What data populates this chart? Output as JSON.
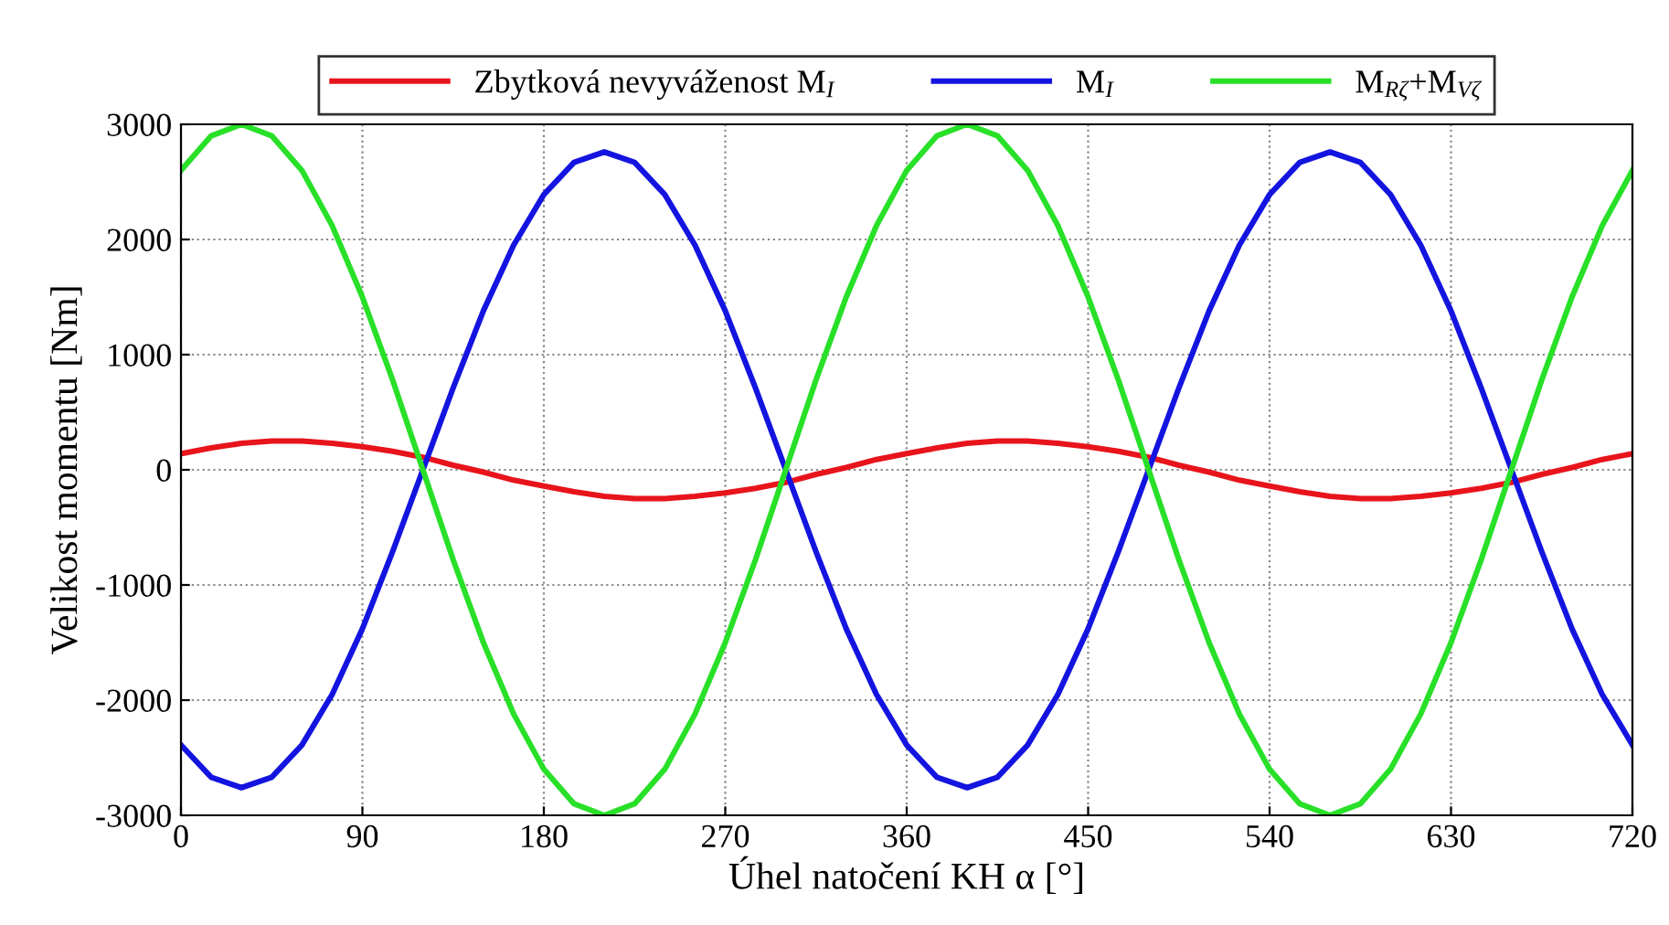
{
  "chart_data": {
    "type": "line",
    "xlabel": "Úhel natočení KH α [°]",
    "ylabel": "Velikost momentu [Nm]",
    "x": [
      0,
      15,
      30,
      45,
      60,
      75,
      90,
      105,
      120,
      135,
      150,
      165,
      180,
      195,
      210,
      225,
      240,
      255,
      270,
      285,
      300,
      315,
      330,
      345,
      360,
      375,
      390,
      405,
      420,
      435,
      450,
      465,
      480,
      495,
      510,
      525,
      540,
      555,
      570,
      585,
      600,
      615,
      630,
      645,
      660,
      675,
      690,
      705,
      720
    ],
    "series": [
      {
        "name": "Zbytková nevyváženost M$_{I}$",
        "color": "#e8141c",
        "values": [
          140,
          190,
          230,
          250,
          250,
          230,
          200,
          160,
          110,
          40,
          -20,
          -90,
          -140,
          -190,
          -230,
          -250,
          -250,
          -230,
          -200,
          -160,
          -110,
          -40,
          20,
          90,
          140,
          190,
          230,
          250,
          250,
          230,
          200,
          160,
          110,
          40,
          -20,
          -90,
          -140,
          -190,
          -230,
          -250,
          -250,
          -230,
          -200,
          -160,
          -110,
          -40,
          20,
          90,
          140
        ]
      },
      {
        "name": "M$_{I}$",
        "color": "#1414e0",
        "values": [
          -2390,
          -2670,
          -2760,
          -2670,
          -2390,
          -1950,
          -1380,
          -710,
          0,
          710,
          1380,
          1950,
          2390,
          2670,
          2760,
          2670,
          2390,
          1950,
          1380,
          710,
          0,
          -710,
          -1380,
          -1950,
          -2390,
          -2670,
          -2760,
          -2670,
          -2390,
          -1950,
          -1380,
          -710,
          0,
          710,
          1380,
          1950,
          2390,
          2670,
          2760,
          2670,
          2390,
          1950,
          1380,
          710,
          0,
          -710,
          -1380,
          -1950,
          -2390
        ]
      },
      {
        "name": "M$_{Rζ}$+M$_{Vζ}$",
        "color": "#28e028",
        "values": [
          2600,
          2900,
          3000,
          2900,
          2600,
          2120,
          1500,
          780,
          0,
          -780,
          -1500,
          -2120,
          -2600,
          -2900,
          -3000,
          -2900,
          -2600,
          -2120,
          -1500,
          -780,
          0,
          780,
          1500,
          2120,
          2600,
          2900,
          3000,
          2900,
          2600,
          2120,
          1500,
          780,
          0,
          -780,
          -1500,
          -2120,
          -2600,
          -2900,
          -3000,
          -2900,
          -2600,
          -2120,
          -1500,
          -780,
          0,
          780,
          1500,
          2120,
          2600
        ]
      }
    ],
    "xlim": [
      0,
      720
    ],
    "xticks": [
      0,
      90,
      180,
      270,
      360,
      450,
      540,
      630,
      720
    ],
    "ylim": [
      -3000,
      3000
    ],
    "yticks": [
      -3000,
      -2000,
      -1000,
      0,
      1000,
      2000,
      3000
    ],
    "grid": true,
    "legend": "top",
    "line_style": "solid",
    "marker": "none"
  }
}
